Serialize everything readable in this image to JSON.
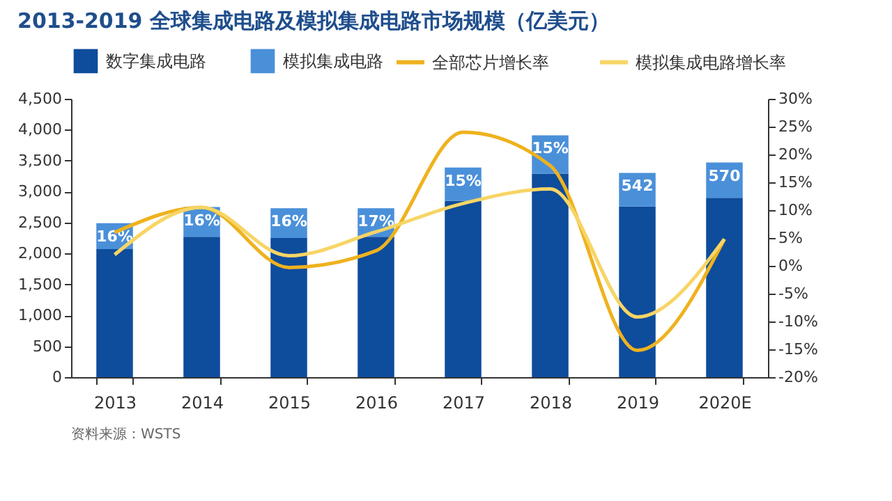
{
  "chart_data": {
    "type": "bar",
    "title": "2013-2019 全球集成电路及模拟集成电路市场规模（亿美元）",
    "categories": [
      "2013",
      "2014",
      "2015",
      "2016",
      "2017",
      "2018",
      "2019",
      "2020E"
    ],
    "stacked": true,
    "series": [
      {
        "name": "数字集成电路",
        "color": "#0e4c9c",
        "values": [
          2070,
          2270,
          2250,
          2270,
          2850,
          3290,
          2760,
          2900
        ]
      },
      {
        "name": "模拟集成电路",
        "color": "#4a90d9",
        "values": [
          420,
          480,
          480,
          460,
          540,
          620,
          542,
          570
        ],
        "value_labels": [
          null,
          null,
          null,
          null,
          null,
          null,
          "542",
          "570"
        ]
      },
      {
        "name": "全部芯片增长率",
        "type": "line",
        "axis": "y2",
        "color": "#efb21e",
        "values": [
          6,
          10.5,
          -0.3,
          2.7,
          24,
          18,
          -15.2,
          4.8
        ]
      },
      {
        "name": "模拟集成电路增长率",
        "type": "line",
        "axis": "y2",
        "color": "#f7d565",
        "values": [
          2,
          10.5,
          1.8,
          6.1,
          11.2,
          13.8,
          -9.2,
          4.8
        ]
      }
    ],
    "ylim": [
      0,
      4500
    ],
    "yticks": [
      0,
      {
        "value": 500,
        "label": "500"
      },
      {
        "value": 1000,
        "label": "1,000"
      },
      {
        "value": 1500,
        "label": "1,500"
      },
      {
        "value": 2000,
        "label": "2,000"
      },
      {
        "value": 2500,
        "label": "2,500"
      },
      {
        "value": 3000,
        "label": "3,000"
      },
      {
        "value": 3500,
        "label": "3,500"
      },
      {
        "value": 4000,
        "label": "4,000"
      },
      {
        "value": 4500,
        "label": "4,500"
      }
    ],
    "y2lim": [
      -20,
      30
    ],
    "y2ticks": [
      {
        "value": -20,
        "label": "-20%"
      },
      {
        "value": -15,
        "label": "-15%"
      },
      {
        "value": -10,
        "label": "-10%"
      },
      {
        "value": -5,
        "label": "-5%"
      },
      {
        "value": 0,
        "label": "0%"
      },
      {
        "value": 5,
        "label": "5%"
      },
      {
        "value": 10,
        "label": "10%"
      },
      {
        "value": 15,
        "label": "15%"
      },
      {
        "value": 20,
        "label": "20%"
      },
      {
        "value": 25,
        "label": "25%"
      },
      {
        "value": 30,
        "label": "30%"
      }
    ],
    "legend": "top",
    "grid": false,
    "marker": "none",
    "line_style": "solid",
    "annotations": [
      {
        "text": "16%",
        "x": "2013",
        "y": 2490
      },
      {
        "text": "16%",
        "x": "2014",
        "y": 2750
      },
      {
        "text": "16%",
        "x": "2015",
        "y": 2730
      },
      {
        "text": "17%",
        "x": "2016",
        "y": 2730
      },
      {
        "text": "15%",
        "x": "2017",
        "y": 3390
      },
      {
        "text": "15%",
        "x": "2018",
        "y": 3910
      },
      "资料来源：WSTS"
    ]
  }
}
